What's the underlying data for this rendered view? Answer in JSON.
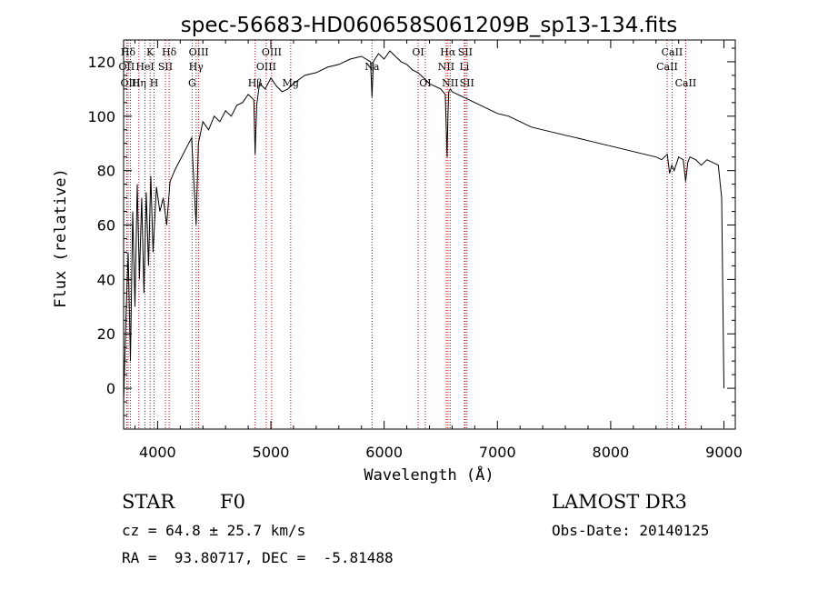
{
  "chart_data": {
    "type": "line",
    "title": "spec-56683-HD060658S061209B_sp13-134.fits",
    "xlabel": "Wavelength (Å)",
    "ylabel": "Flux (relative)",
    "xlim": [
      3700,
      9100
    ],
    "ylim": [
      -15,
      128
    ],
    "xticks": [
      4000,
      5000,
      6000,
      7000,
      8000,
      9000
    ],
    "yticks": [
      0,
      20,
      40,
      60,
      80,
      100,
      120
    ],
    "grid": false,
    "line_color": "#000000",
    "marker_color": "#cc0000",
    "spectrum": {
      "x": [
        3700,
        3720,
        3740,
        3760,
        3780,
        3800,
        3820,
        3840,
        3860,
        3880,
        3900,
        3920,
        3940,
        3960,
        3990,
        4020,
        4050,
        4080,
        4110,
        4150,
        4200,
        4250,
        4300,
        4340,
        4360,
        4400,
        4450,
        4500,
        4550,
        4600,
        4650,
        4700,
        4750,
        4800,
        4850,
        4861,
        4875,
        4900,
        4950,
        5000,
        5050,
        5100,
        5150,
        5200,
        5300,
        5400,
        5500,
        5600,
        5700,
        5800,
        5880,
        5893,
        5905,
        5950,
        6000,
        6050,
        6100,
        6150,
        6200,
        6250,
        6300,
        6350,
        6400,
        6450,
        6500,
        6540,
        6556,
        6563,
        6570,
        6585,
        6600,
        6650,
        6700,
        6800,
        6900,
        7000,
        7100,
        7200,
        7300,
        7400,
        7500,
        7600,
        7700,
        7800,
        7900,
        8000,
        8100,
        8200,
        8300,
        8400,
        8450,
        8500,
        8520,
        8540,
        8560,
        8600,
        8640,
        8662,
        8680,
        8700,
        8750,
        8800,
        8850,
        8900,
        8950,
        8980,
        9000
      ],
      "y": [
        -5,
        25,
        50,
        10,
        65,
        30,
        75,
        40,
        70,
        35,
        72,
        45,
        78,
        50,
        74,
        65,
        70,
        60,
        76,
        80,
        84,
        88,
        92,
        60,
        90,
        98,
        95,
        100,
        98,
        102,
        100,
        104,
        105,
        108,
        106,
        86,
        104,
        112,
        110,
        114,
        111,
        109,
        110,
        112,
        115,
        116,
        118,
        119,
        121,
        122,
        120,
        107,
        120,
        123,
        121,
        124,
        122,
        120,
        119,
        117,
        116,
        114,
        112,
        111,
        110,
        108,
        85,
        100,
        109,
        110,
        109,
        108,
        107,
        105,
        103,
        101,
        100,
        98,
        96,
        95,
        94,
        93,
        92,
        91,
        90,
        89,
        88,
        87,
        86,
        85,
        84,
        86,
        79,
        82,
        80,
        85,
        84,
        76,
        83,
        85,
        84,
        82,
        84,
        83,
        82,
        70,
        0
      ]
    },
    "lines": [
      {
        "label": "Hδ",
        "wave": 3740,
        "row": 1
      },
      {
        "label": "OII",
        "wave": 3727,
        "row": 2
      },
      {
        "label": "OIII",
        "wave": 3760,
        "row": 3
      },
      {
        "label": "K",
        "wave": 3934,
        "row": 1
      },
      {
        "label": "HeI",
        "wave": 3889,
        "row": 2
      },
      {
        "label": "Hη",
        "wave": 3835,
        "row": 3
      },
      {
        "label": "Hδ",
        "wave": 4102,
        "row": 1
      },
      {
        "label": "SII",
        "wave": 4069,
        "row": 2
      },
      {
        "label": "H",
        "wave": 3969,
        "row": 3
      },
      {
        "label": "OIII",
        "wave": 4363,
        "row": 1
      },
      {
        "label": "Hγ",
        "wave": 4340,
        "row": 2
      },
      {
        "label": "G",
        "wave": 4305,
        "row": 3
      },
      {
        "label": "Hβ",
        "wave": 4861,
        "row": 3
      },
      {
        "label": "OIII",
        "wave": 5007,
        "row": 1
      },
      {
        "label": "OIII",
        "wave": 4959,
        "row": 2
      },
      {
        "label": "Mg",
        "wave": 5175,
        "row": 3
      },
      {
        "label": "Na",
        "wave": 5893,
        "row": 2
      },
      {
        "label": "OI",
        "wave": 6300,
        "row": 1
      },
      {
        "label": "OI",
        "wave": 6363,
        "row": 3
      },
      {
        "label": "Hα",
        "wave": 6563,
        "row": 1
      },
      {
        "label": "NII",
        "wave": 6548,
        "row": 2
      },
      {
        "label": "NII",
        "wave": 6583,
        "row": 3
      },
      {
        "label": "SII",
        "wave": 6716,
        "row": 1
      },
      {
        "label": "Li",
        "wave": 6708,
        "row": 2
      },
      {
        "label": "SII",
        "wave": 6731,
        "row": 3
      },
      {
        "label": "CaII",
        "wave": 8542,
        "row": 1
      },
      {
        "label": "CaII",
        "wave": 8498,
        "row": 2
      },
      {
        "label": "CaII",
        "wave": 8662,
        "row": 3
      }
    ]
  },
  "info": {
    "class": "STAR",
    "subclass": "F0",
    "survey": "LAMOST DR3",
    "cz": "cz = 64.8 ± 25.7 km/s",
    "obs_date": "Obs-Date: 20140125",
    "coords": "RA =  93.80717, DEC =  -5.81488"
  }
}
